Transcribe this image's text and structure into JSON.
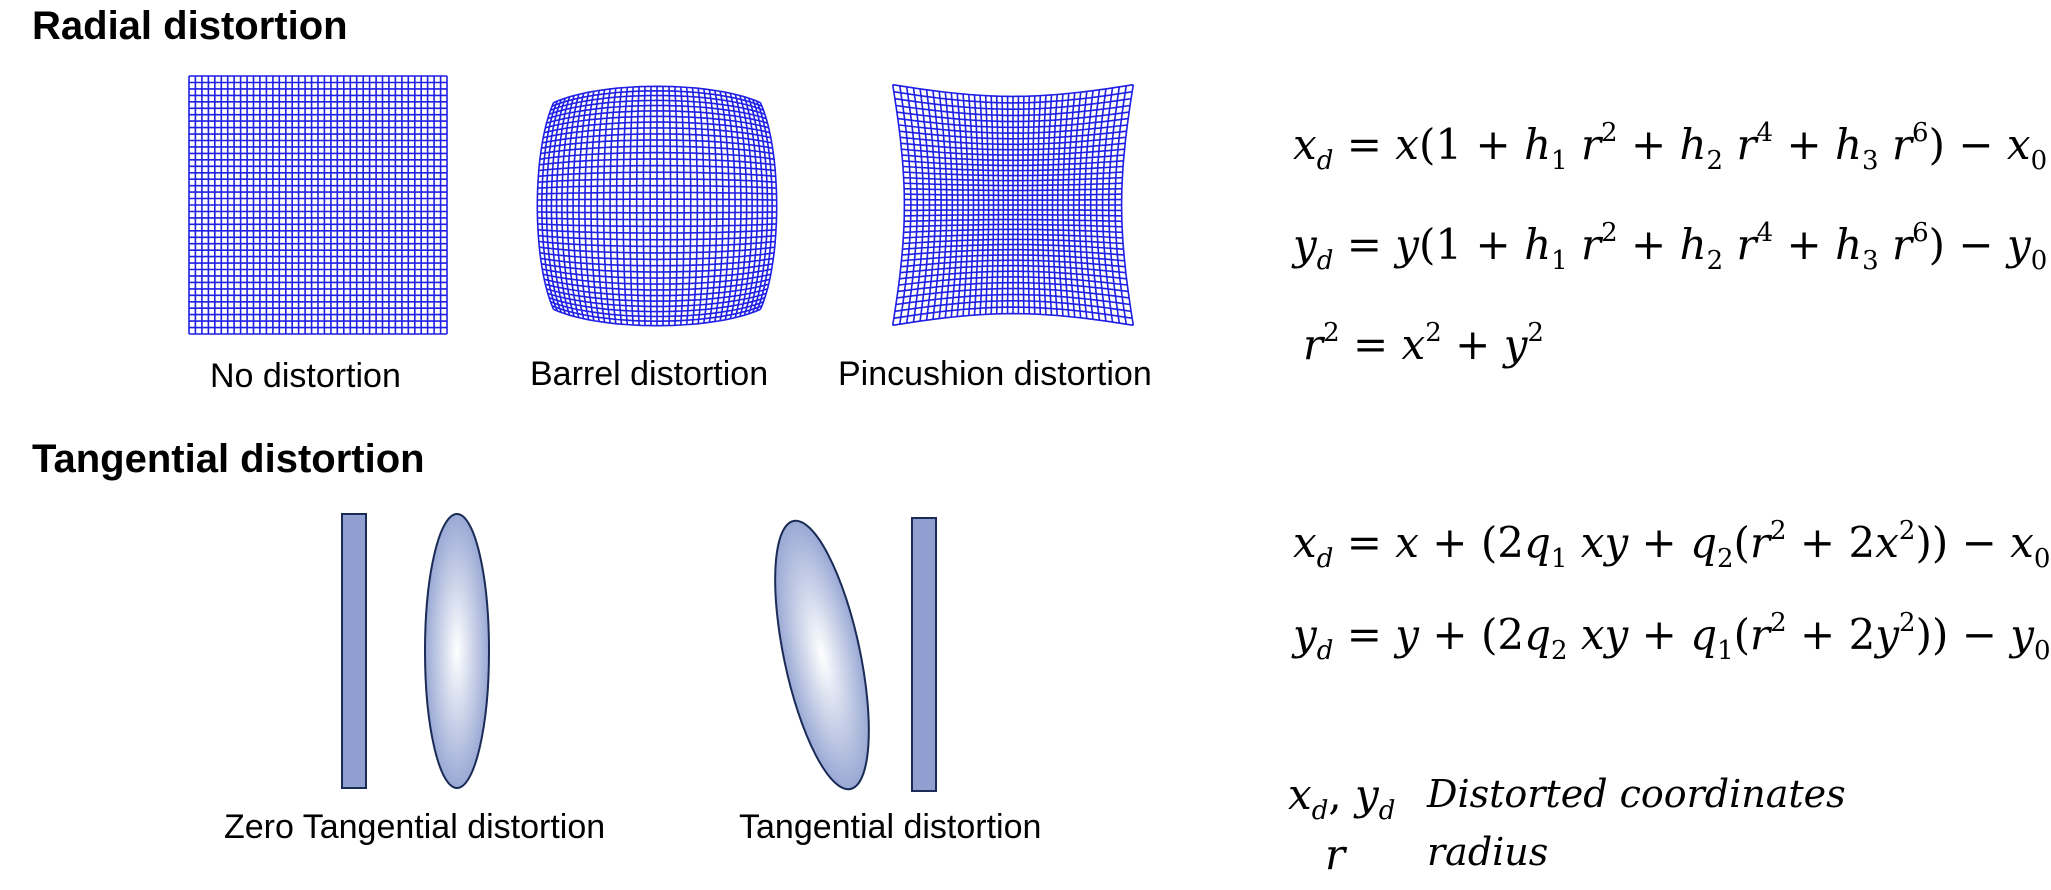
{
  "radial": {
    "heading": "Radial distortion",
    "captions": [
      "No distortion",
      "Barrel distortion",
      "Pincushion distortion"
    ]
  },
  "tangential": {
    "heading": "Tangential distortion",
    "captions": [
      "Zero Tangential distortion",
      "Tangential distortion"
    ]
  },
  "equations": {
    "radial_xd": "x_d = x(1 + h_1 r^2 + h_2 r^4 + h_3 r^6) − x_0",
    "radial_yd": "y_d = y(1 + h_1 r^2 + h_2 r^4 + h_3 r^6) − y_0",
    "radius": "r^2 = x^2 + y^2",
    "tangential_xd": "x_d = x + (2q_1 xy + q_2(r^2 + 2x^2)) − x_0",
    "tangential_yd": "y_d = y + (2q_2 xy + q_1(r^2 + 2y^2)) − y_0"
  },
  "legend": [
    {
      "symbol": "x_d, y_d",
      "meaning": "Distorted coordinates"
    },
    {
      "symbol": "r",
      "meaning": "radius"
    }
  ],
  "colors": {
    "grid": "#1f1fe6",
    "lens_fill": "#8fa0d0",
    "lens_stroke": "#1a2b55"
  }
}
